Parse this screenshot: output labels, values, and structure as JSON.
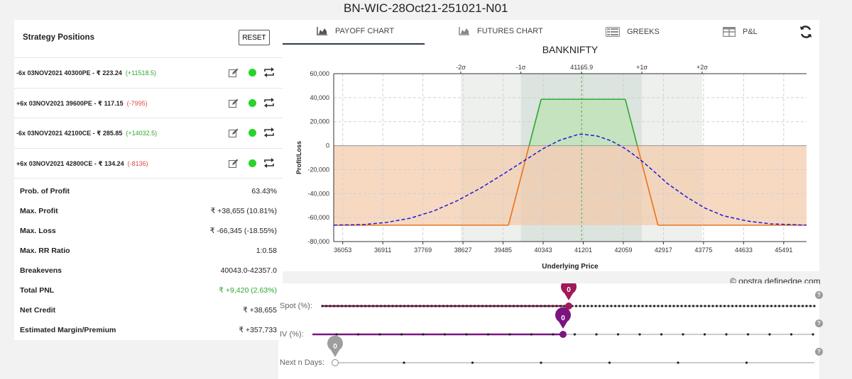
{
  "title": "BN-WIC-28Oct21-251021-N01",
  "left_panel": {
    "heading": "Strategy Positions",
    "reset_label": "RESET",
    "positions": [
      {
        "text": "-6x  03NOV2021  40300PE  - ₹ 223.24",
        "pnl": "(+11518.5)",
        "pnl_color": "#2ea82e"
      },
      {
        "text": "+6x  03NOV2021  39600PE  - ₹ 117.15",
        "pnl": "(-7995)",
        "pnl_color": "#e04848"
      },
      {
        "text": "-6x  03NOV2021  42100CE  - ₹ 285.85",
        "pnl": "(+14032.5)",
        "pnl_color": "#2ea82e"
      },
      {
        "text": "+6x  03NOV2021  42800CE  - ₹ 134.24",
        "pnl": "(-8136)",
        "pnl_color": "#e04848"
      }
    ],
    "stats": [
      {
        "label": "Prob. of Profit",
        "value": "63.43%"
      },
      {
        "label": "Max. Profit",
        "value": "₹ +38,655 (10.81%)"
      },
      {
        "label": "Max. Loss",
        "value": "₹ -66,345 (-18.55%)"
      },
      {
        "label": "Max. RR Ratio",
        "value": "1:0.58"
      },
      {
        "label": "Breakevens",
        "value": "40043.0-42357.0"
      },
      {
        "label": "Total PNL",
        "value": "₹ +9,420 (2.63%)",
        "value_color": "#2ea82e"
      },
      {
        "label": "Net Credit",
        "value": "₹ +38,655"
      },
      {
        "label": "Estimated Margin/Premium",
        "value": "₹ +357,733"
      }
    ]
  },
  "tabs": [
    {
      "label": "PAYOFF CHART",
      "icon": "area-chart-icon",
      "active": true
    },
    {
      "label": "FUTURES CHART",
      "icon": "area-chart-icon",
      "active": false
    },
    {
      "label": "GREEKS",
      "icon": "table-list-icon",
      "active": false
    },
    {
      "label": "P&L",
      "icon": "table-grid-icon",
      "active": false
    }
  ],
  "chart_data": {
    "type": "area",
    "title": "BANKNIFTY",
    "xlabel": "Underlying Price",
    "ylabel": "Profit/Loss",
    "xlim": [
      35860,
      45980
    ],
    "ylim": [
      -80000,
      60000
    ],
    "x_ticks": [
      36053,
      36911,
      37769,
      38627,
      39485,
      40343,
      41201,
      42059,
      42917,
      43775,
      44633,
      45491
    ],
    "y_ticks": [
      60000,
      40000,
      20000,
      0,
      -20000,
      -40000,
      -60000,
      -80000
    ],
    "y_tick_labels": [
      "60,000",
      "40,000",
      "20,000",
      "0",
      "-20,000",
      "-40,000",
      "-60,000",
      "-80,000"
    ],
    "top_axis": [
      {
        "label": "-2σ",
        "x": 38580
      },
      {
        "label": "-1σ",
        "x": 39865
      },
      {
        "label": "41165.9",
        "x": 41165.9
      },
      {
        "label": "+1σ",
        "x": 42455
      },
      {
        "label": "+2σ",
        "x": 43745
      }
    ],
    "series": [
      {
        "style": "expiry",
        "color": "#2ea82e",
        "loss_color": "#e8731e",
        "points": [
          [
            35860,
            -66345
          ],
          [
            39600,
            -66345
          ],
          [
            40300,
            38655
          ],
          [
            42100,
            38655
          ],
          [
            42800,
            -66345
          ],
          [
            45980,
            -66345
          ]
        ]
      },
      {
        "style": "target",
        "color": "#1a1adf",
        "points": [
          [
            35860,
            -66300
          ],
          [
            36500,
            -65800
          ],
          [
            37000,
            -64000
          ],
          [
            37500,
            -60500
          ],
          [
            38000,
            -54500
          ],
          [
            38500,
            -46000
          ],
          [
            39000,
            -35500
          ],
          [
            39500,
            -23500
          ],
          [
            40000,
            -11000
          ],
          [
            40343,
            -2500
          ],
          [
            40700,
            4500
          ],
          [
            41100,
            9400
          ],
          [
            41200,
            9500
          ],
          [
            41500,
            8000
          ],
          [
            41800,
            4000
          ],
          [
            42100,
            -2500
          ],
          [
            42400,
            -11000
          ],
          [
            42700,
            -21000
          ],
          [
            43000,
            -31500
          ],
          [
            43400,
            -42500
          ],
          [
            43800,
            -52000
          ],
          [
            44200,
            -58500
          ],
          [
            44700,
            -62800
          ],
          [
            45200,
            -65200
          ],
          [
            45980,
            -66300
          ]
        ]
      }
    ],
    "grid": true
  },
  "watermark": "© opstra.definedge.com",
  "sliders": [
    {
      "label": "Spot (%):",
      "value": "0",
      "fill_fraction": 0.5,
      "color": "#a0195a"
    },
    {
      "label": "IV (%):",
      "value": "0",
      "fill_fraction": 0.5,
      "color": "#7a1580"
    },
    {
      "label": "Next n Days:",
      "value": "0",
      "fill_fraction": 0.0,
      "color": "#9e9e9e"
    }
  ]
}
